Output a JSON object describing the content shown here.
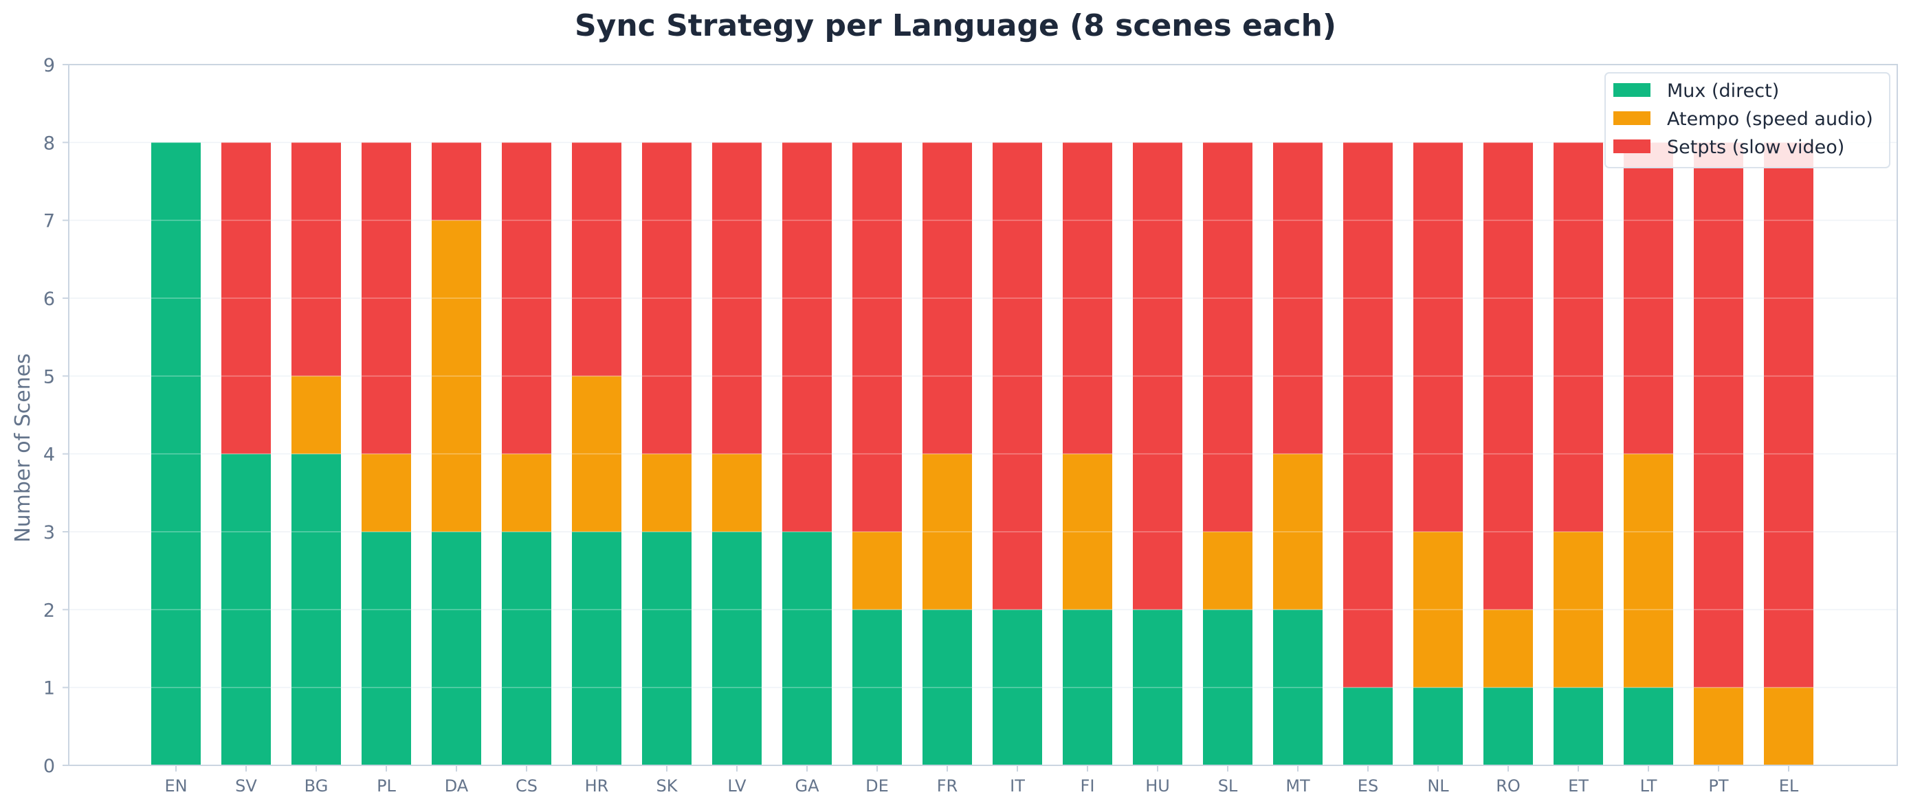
{
  "chart_data": {
    "type": "bar",
    "stacked": true,
    "title": "Sync Strategy per Language (8 scenes each)",
    "xlabel": "",
    "ylabel": "Number of Scenes",
    "ylim": [
      0,
      9
    ],
    "yticks": [
      0,
      1,
      2,
      3,
      4,
      5,
      6,
      7,
      8,
      9
    ],
    "grid": "horizontal",
    "legend_position": "top-right",
    "categories": [
      "EN",
      "SV",
      "BG",
      "PL",
      "DA",
      "CS",
      "HR",
      "SK",
      "LV",
      "GA",
      "DE",
      "FR",
      "IT",
      "FI",
      "HU",
      "SL",
      "MT",
      "ES",
      "NL",
      "RO",
      "ET",
      "LT",
      "PT",
      "EL"
    ],
    "series": [
      {
        "name": "Mux (direct)",
        "color": "#10b981",
        "values": [
          8,
          4,
          4,
          3,
          3,
          3,
          3,
          3,
          3,
          3,
          2,
          2,
          2,
          2,
          2,
          2,
          2,
          1,
          1,
          1,
          1,
          1,
          0,
          0
        ]
      },
      {
        "name": "Atempo (speed audio)",
        "color": "#f59e0b",
        "values": [
          0,
          0,
          1,
          1,
          4,
          1,
          2,
          1,
          1,
          0,
          1,
          2,
          0,
          2,
          0,
          1,
          2,
          0,
          2,
          1,
          2,
          3,
          1,
          1
        ]
      },
      {
        "name": "Setpts (slow video)",
        "color": "#ef4444",
        "values": [
          0,
          4,
          3,
          4,
          1,
          4,
          3,
          4,
          4,
          5,
          5,
          4,
          6,
          4,
          6,
          5,
          4,
          7,
          5,
          6,
          5,
          4,
          7,
          7
        ]
      }
    ]
  }
}
